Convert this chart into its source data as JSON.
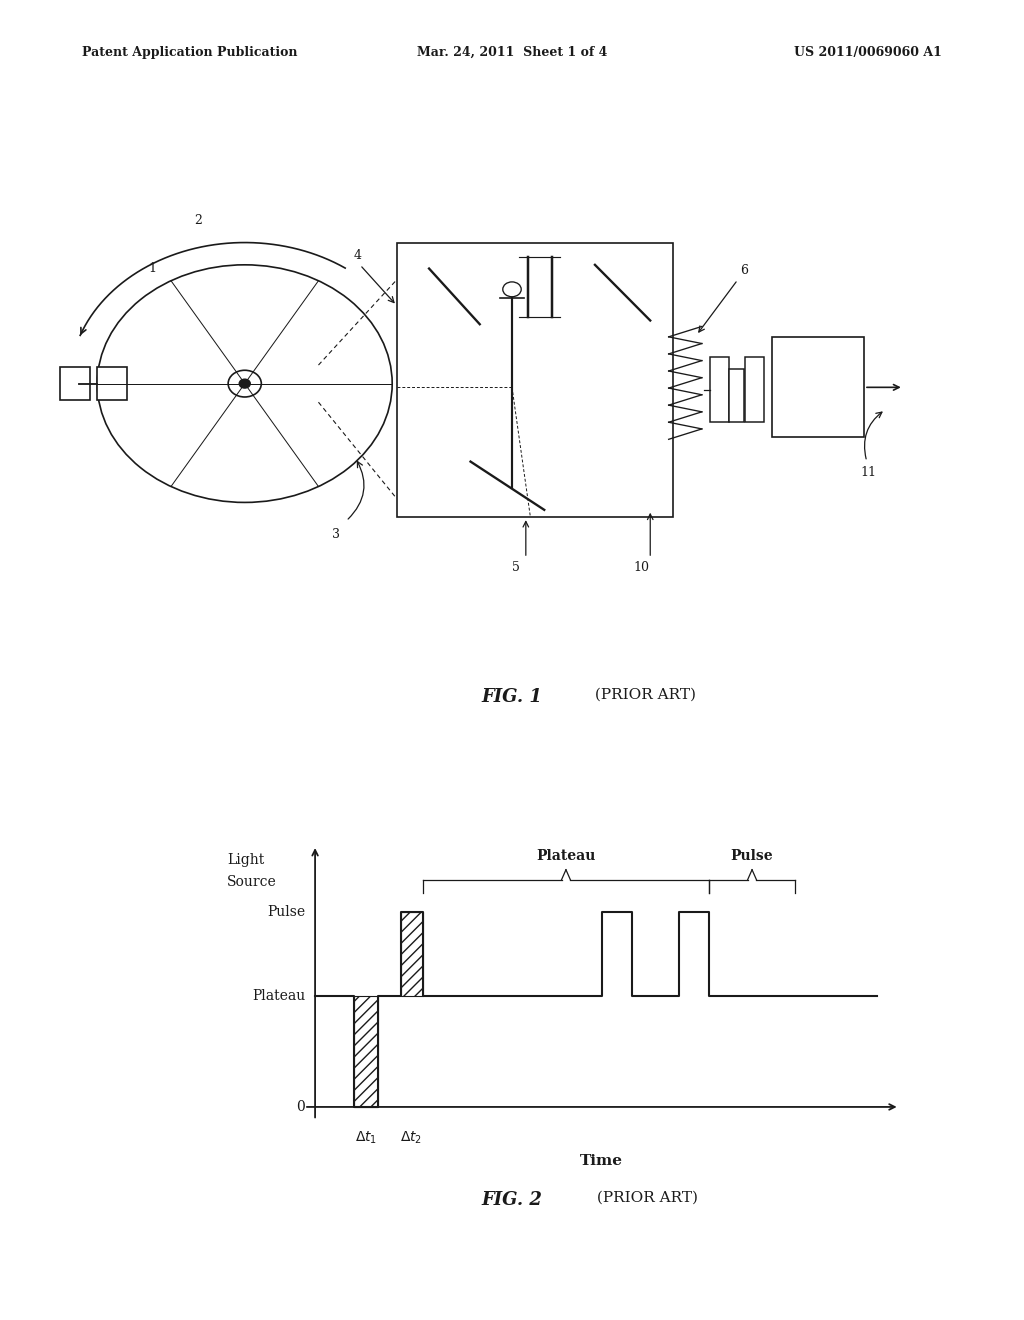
{
  "bg_color": "#ffffff",
  "header_left": "Patent Application Publication",
  "header_mid": "Mar. 24, 2011  Sheet 1 of 4",
  "header_right": "US 2011/0069060 A1",
  "fig1_caption": "FIG. 1",
  "fig1_caption_suffix": " (PRIOR ART)",
  "fig2_caption": "FIG. 2",
  "fig2_caption_suffix": " (PRIOR ART)",
  "fig2_ylabel_line1": "Light",
  "fig2_ylabel_line2": "Source",
  "fig2_ytick_pulse": "Pulse",
  "fig2_ytick_plateau": "Plateau",
  "fig2_ytick_zero": "0",
  "fig2_xlabel": "Time",
  "fig2_label_plateau": "Plateau",
  "fig2_label_pulse": "Pulse",
  "line_color": "#1a1a1a",
  "text_color": "#1a1a1a"
}
